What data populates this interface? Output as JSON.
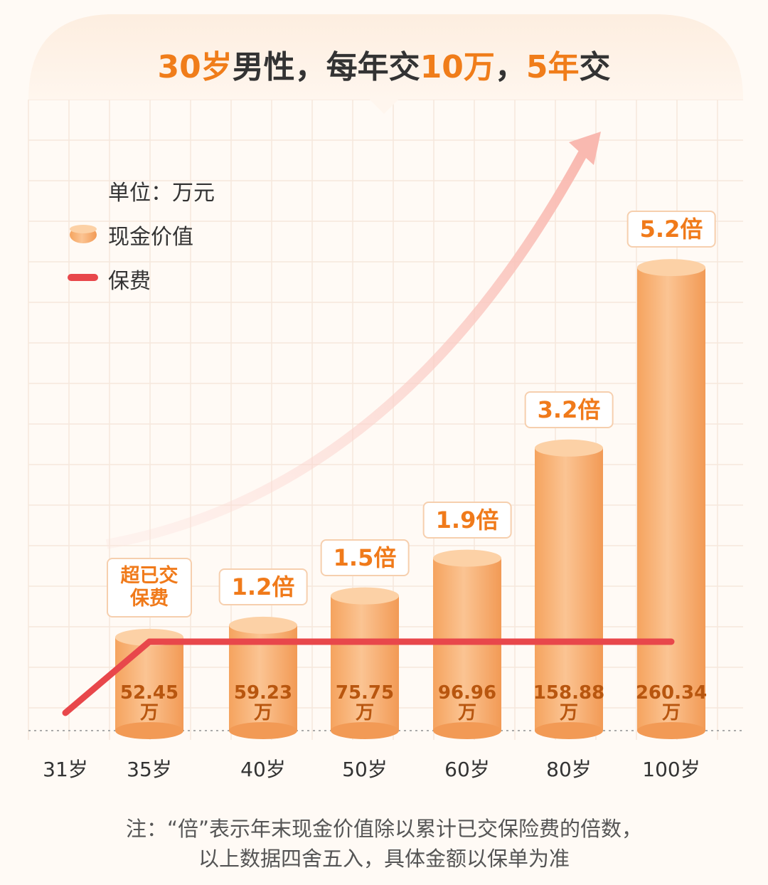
{
  "chart_data": {
    "type": "bar",
    "title_parts": [
      "30岁",
      "男性，每年交",
      "10万",
      "，",
      "5年",
      "交"
    ],
    "unit_label": "单位：万元",
    "categories": [
      "31岁",
      "35岁",
      "40岁",
      "50岁",
      "60岁",
      "80岁",
      "100岁"
    ],
    "series": [
      {
        "name": "现金价值",
        "color": "#f6a862",
        "type": "bar",
        "values": [
          null,
          52.45,
          59.23,
          75.75,
          96.96,
          158.88,
          260.34
        ],
        "value_labels": [
          null,
          "52.45万",
          "59.23万",
          "75.75万",
          "96.96万",
          "158.88万",
          "260.34万"
        ]
      },
      {
        "name": "保费",
        "color": "#e8474b",
        "type": "line",
        "values": [
          10,
          50,
          50,
          50,
          50,
          50,
          50
        ]
      }
    ],
    "annotations": [
      null,
      "超已交保费",
      "1.2倍",
      "1.5倍",
      "1.9倍",
      "3.2倍",
      "5.2倍"
    ],
    "note": [
      "注：“倍”表示年末现金价值除以累计已交保险费的倍数，",
      "以上数据四舍五入，具体金额以保单为准"
    ]
  }
}
